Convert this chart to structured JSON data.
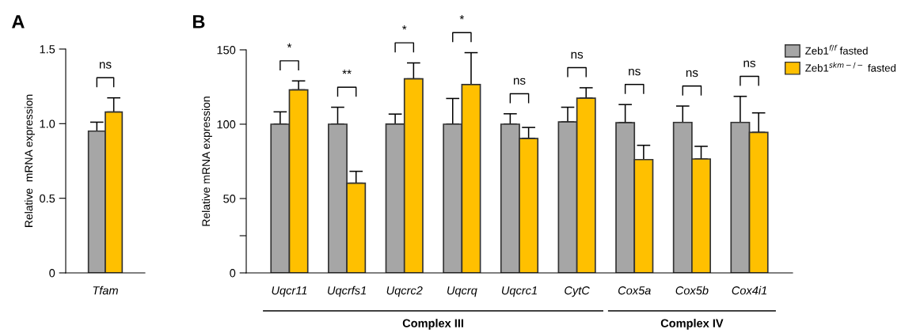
{
  "chart_data": [
    {
      "type": "bar",
      "ylabel": "Relative  mRNA expression",
      "categories": [
        "Tfam"
      ],
      "series": [
        {
          "color": "#a6a6a6",
          "values": [
            0.95
          ],
          "errors": [
            [
              0.95,
              1.01
            ]
          ]
        },
        {
          "color": "#ffc000",
          "values": [
            1.078
          ],
          "errors": [
            [
              1.078,
              1.173
            ]
          ]
        }
      ],
      "ylim": [
        0,
        1.5
      ],
      "yticks": [
        0,
        {
          "value": 0.5,
          "label": "0.5"
        },
        {
          "value": 1.0,
          "label": "1.0"
        },
        {
          "value": 1.5,
          "label": "1.5"
        }
      ],
      "grid": false,
      "legend": false,
      "annotations": [
        "ns",
        "A"
      ]
    },
    {
      "type": "bar",
      "ylabel": "Relative mRNA expression",
      "categories": [
        "Uqcr11",
        "Uqcrfs1",
        "Uqcrc2",
        "Uqcrq",
        "Uqcrc1",
        "CytC",
        "Cox5a",
        "Cox5b",
        "Cox4i1"
      ],
      "series": [
        {
          "name": "Zeb1$^{f/f}$ fasted",
          "color": "#a6a6a6",
          "values": [
            100,
            100,
            100.1,
            100,
            100,
            101.5,
            101,
            101.2,
            101.2
          ],
          "errors": [
            [
              100,
              108.3
            ],
            [
              100,
              111.4
            ],
            [
              100.1,
              106.8
            ],
            [
              100,
              117.3
            ],
            [
              100,
              107
            ],
            [
              101.5,
              111.4
            ],
            [
              101,
              113.2
            ],
            [
              101.2,
              112.2
            ],
            [
              101.2,
              118.7
            ]
          ]
        },
        {
          "name": "Zeb1$^{skm−/−}$ fasted",
          "color": "#ffc000",
          "values": [
            123.1,
            60.3,
            130.5,
            126.7,
            90.4,
            117.5,
            76.2,
            76.6,
            94.5
          ],
          "errors": [
            [
              123.1,
              129.1
            ],
            [
              60.3,
              68.3
            ],
            [
              130.5,
              141.2
            ],
            [
              126.7,
              148.1
            ],
            [
              90.4,
              97.8
            ],
            [
              117.5,
              124.5
            ],
            [
              76.2,
              85.8
            ],
            [
              76.6,
              85.1
            ],
            [
              94.5,
              107.6
            ]
          ]
        }
      ],
      "ylim": [
        0,
        150
      ],
      "yticks": [
        0,
        {
          "value": 25,
          "label": null
        },
        50,
        100,
        150
      ],
      "grid": false,
      "legend": "top right",
      "annotations": [
        "*",
        "**",
        "*",
        "*",
        "ns",
        "ns",
        "ns",
        "ns",
        "ns",
        "B",
        "Complex III",
        "Complex IV"
      ]
    }
  ]
}
